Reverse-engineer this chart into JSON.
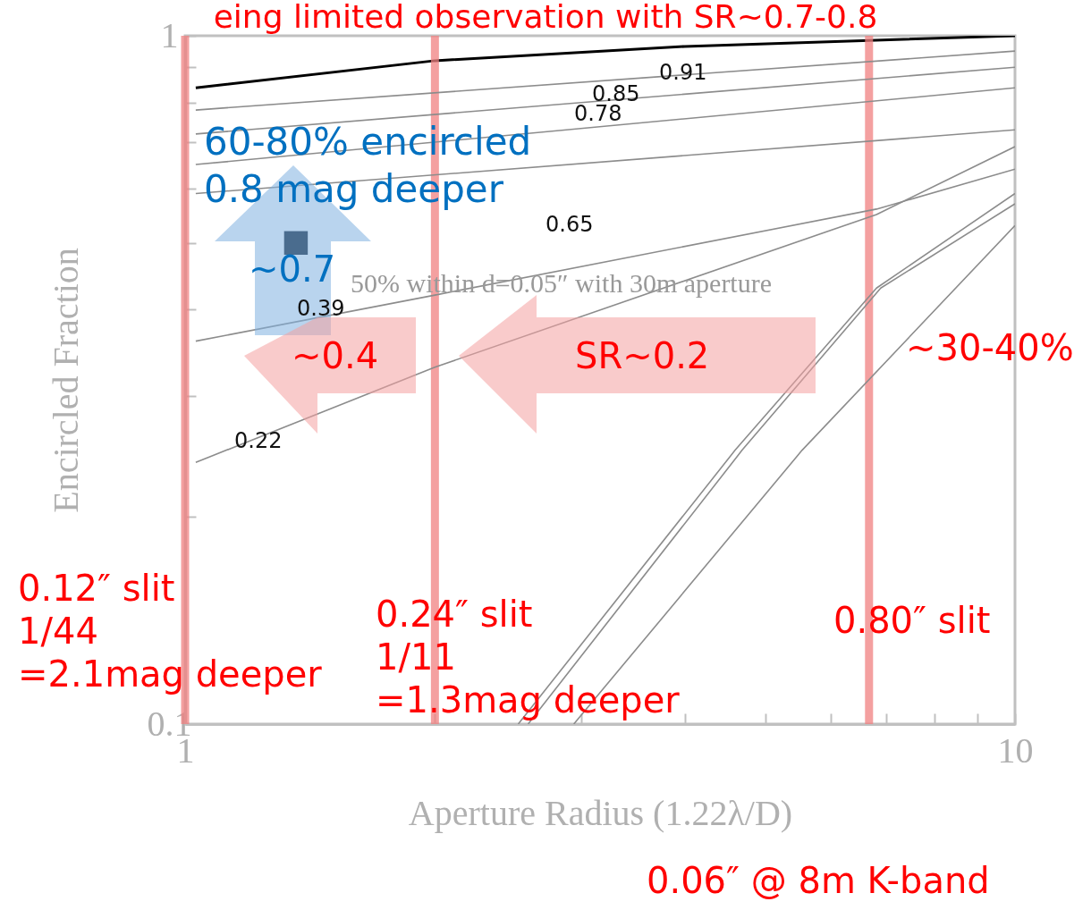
{
  "chart_data": {
    "type": "line",
    "title": "eing limited observation with SR~0.7-0.8",
    "xlabel": "Aperture Radius (1.22λ/D)",
    "ylabel": "Encircled Fraction",
    "log": "xy",
    "grid": false,
    "legend": false,
    "line_style": "solid",
    "xlim": [
      1,
      10
    ],
    "ylim": [
      0.1,
      1
    ],
    "xticks": [
      1,
      {
        "value": 2,
        "label": null
      },
      {
        "value": 3,
        "label": null
      },
      {
        "value": 4,
        "label": null
      },
      {
        "value": 5,
        "label": null
      },
      {
        "value": 6,
        "label": null
      },
      {
        "value": 7,
        "label": null
      },
      {
        "value": 8,
        "label": null
      },
      {
        "value": 9,
        "label": null
      },
      10
    ],
    "yticks": [
      0.1,
      {
        "value": 0.2,
        "label": null
      },
      {
        "value": 0.3,
        "label": null
      },
      {
        "value": 0.4,
        "label": null
      },
      {
        "value": 0.5,
        "label": null
      },
      {
        "value": 0.6,
        "label": null
      },
      {
        "value": 0.7,
        "label": null
      },
      {
        "value": 0.8,
        "label": null
      },
      {
        "value": 0.9,
        "label": null
      },
      1
    ],
    "series": [
      {
        "color": "#000000",
        "x": [
          1.03,
          2,
          4,
          10
        ],
        "values": [
          0.84,
          0.92,
          0.965,
          1.0
        ]
      },
      {
        "color": "#8c8c8c",
        "x": [
          1.03,
          10
        ],
        "values": [
          0.78,
          0.95
        ]
      },
      {
        "color": "#8c8c8c",
        "x": [
          1.03,
          10
        ],
        "values": [
          0.72,
          0.9
        ]
      },
      {
        "color": "#8c8c8c",
        "x": [
          1.03,
          10
        ],
        "values": [
          0.65,
          0.84
        ]
      },
      {
        "color": "#8c8c8c",
        "x": [
          1.03,
          10
        ],
        "values": [
          0.59,
          0.73
        ]
      },
      {
        "color": "#8c8c8c",
        "x": [
          1.03,
          2,
          6.81,
          10
        ],
        "values": [
          0.36,
          0.42,
          0.56,
          0.64
        ]
      },
      {
        "color": "#8c8c8c",
        "x": [
          1.03,
          2,
          6.81,
          10
        ],
        "values": [
          0.24,
          0.33,
          0.55,
          0.69
        ]
      },
      {
        "color": "#8c8c8c",
        "x": [
          2.52,
          4.6,
          6.81,
          10
        ],
        "values": [
          0.1,
          0.25,
          0.43,
          0.59
        ]
      },
      {
        "color": "#8c8c8c",
        "x": [
          2.59,
          4.69,
          6.89,
          10
        ],
        "values": [
          0.1,
          0.25,
          0.43,
          0.57
        ]
      },
      {
        "color": "#8c8c8c",
        "x": [
          2.94,
          5.54,
          10
        ],
        "values": [
          0.1,
          0.25,
          0.53
        ]
      },
      {
        "type": "scatter",
        "marker": "square",
        "color": "#0a1a2a",
        "x": [
          1.36
        ],
        "values": [
          0.5
        ]
      }
    ],
    "ref_lines": [
      {
        "axis": "x",
        "value": 1.0,
        "color": "#f08080"
      },
      {
        "axis": "x",
        "value": 2,
        "color": "#f08080"
      },
      {
        "axis": "x",
        "value": 6.67,
        "color": "#f08080"
      }
    ],
    "annotations": [
      "0.91",
      "0.85",
      "0.78",
      "0.65",
      "0.39",
      "0.22",
      "50% within d=0.05″ with 30m aperture",
      "60-80% encircled\n0.8 mag deeper",
      "~0.7",
      "~0.4",
      "SR~0.2",
      "~30-40%",
      "0.06″ @ 8m K-band",
      "0.12″ slit\n1/44\n=2.1mag deeper",
      "0.24″ slit\n1/11\n=1.3mag deeper",
      "0.80″ slit"
    ]
  }
}
